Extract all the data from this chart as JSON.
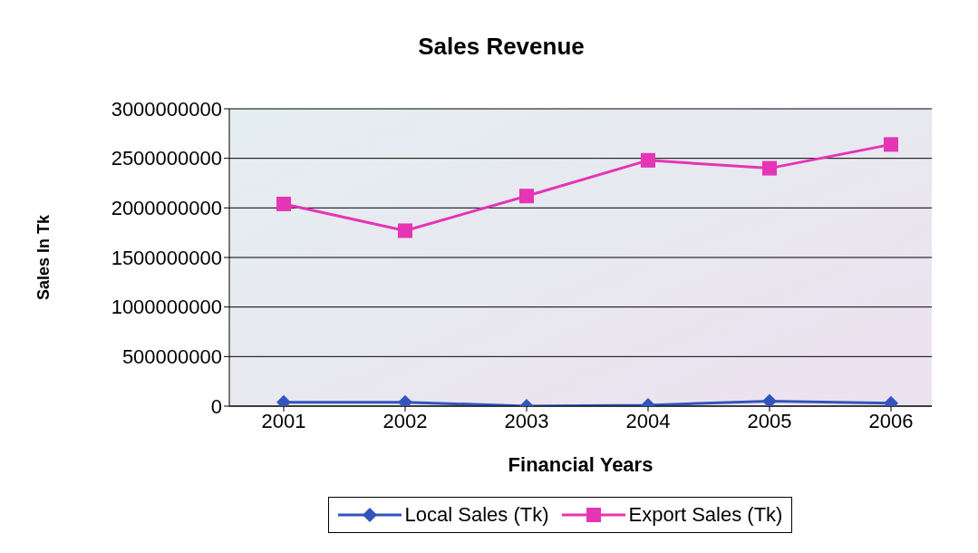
{
  "chart_data": {
    "type": "line",
    "title": "Sales Revenue",
    "xlabel": "Financial Years",
    "ylabel": "Sales In Tk",
    "categories": [
      "2001",
      "2002",
      "2003",
      "2004",
      "2005",
      "2006"
    ],
    "series": [
      {
        "name": "Local Sales (Tk)",
        "color": "#3355bb",
        "marker": "diamond",
        "values": [
          40000000,
          40000000,
          0,
          10000000,
          50000000,
          30000000
        ]
      },
      {
        "name": "Export Sales (Tk)",
        "color": "#e535b5",
        "marker": "square",
        "values": [
          2040000000,
          1770000000,
          2120000000,
          2480000000,
          2400000000,
          2640000000
        ]
      }
    ],
    "ylim": [
      0,
      3000000000
    ],
    "yticks": [
      0,
      500000000,
      1000000000,
      1500000000,
      2000000000,
      2500000000,
      3000000000
    ],
    "grid": "y",
    "legend": "bottom",
    "line_style": "solid"
  }
}
